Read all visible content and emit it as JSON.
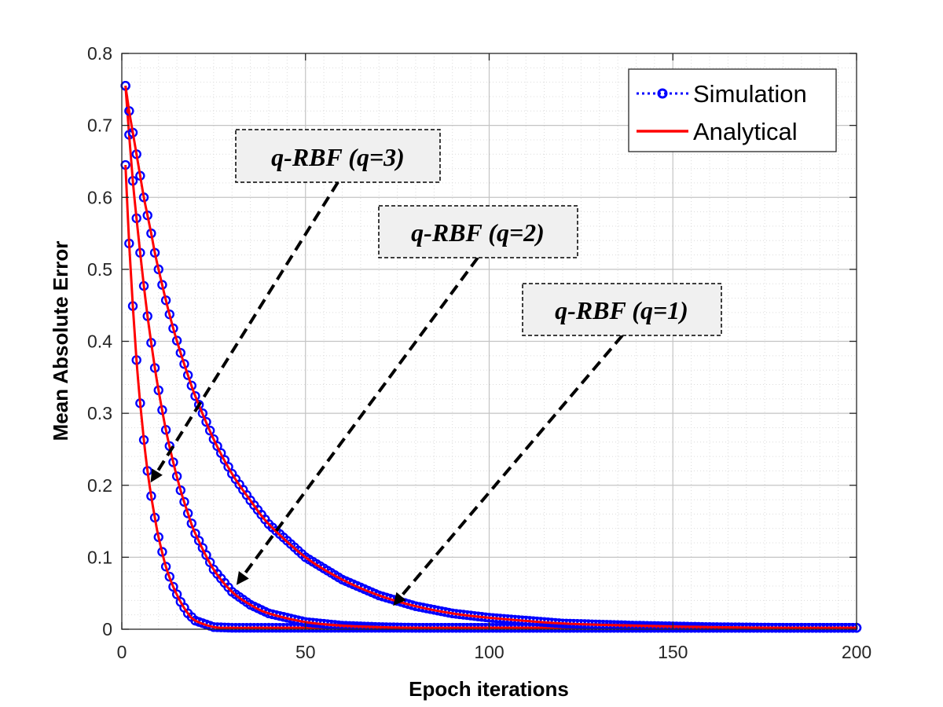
{
  "chart_data": {
    "type": "line",
    "xlabel": "Epoch iterations",
    "ylabel": "Mean Absolute Error",
    "xlim": [
      0,
      200
    ],
    "ylim": [
      0,
      0.8
    ],
    "x_ticks": [
      "0",
      "50",
      "100",
      "150",
      "200"
    ],
    "y_ticks": [
      "0",
      "0.1",
      "0.2",
      "0.3",
      "0.4",
      "0.5",
      "0.6",
      "0.7",
      "0.8"
    ],
    "grid": true,
    "minor_grid": true,
    "legend_position": "top-right",
    "legend": [
      {
        "label": "Simulation",
        "style": "dotted line with circle markers",
        "color": "#0000ff"
      },
      {
        "label": "Analytical",
        "style": "solid line",
        "color": "#ff0000"
      }
    ],
    "x": [
      1,
      2,
      3,
      4,
      5,
      6,
      7,
      8,
      9,
      10,
      12,
      14,
      16,
      18,
      20,
      25,
      30,
      35,
      40,
      50,
      60,
      70,
      80,
      90,
      100,
      120,
      140,
      160,
      180,
      200
    ],
    "series": [
      {
        "curve": "q-RBF (q=1)",
        "values": [
          0.645,
          0.536,
          0.449,
          0.374,
          0.314,
          0.263,
          0.22,
          0.185,
          0.155,
          0.128,
          0.087,
          0.059,
          0.038,
          0.022,
          0.012,
          0.003,
          0.002,
          0.002,
          0.002,
          0.002,
          0.002,
          0.002,
          0.002,
          0.002,
          0.002,
          0.002,
          0.002,
          0.002,
          0.002,
          0.002
        ]
      },
      {
        "curve": "q-RBF (q=2)",
        "values": [
          0.755,
          0.687,
          0.623,
          0.571,
          0.523,
          0.477,
          0.435,
          0.398,
          0.363,
          0.332,
          0.277,
          0.232,
          0.193,
          0.161,
          0.133,
          0.083,
          0.052,
          0.034,
          0.022,
          0.01,
          0.005,
          0.003,
          0.002,
          0.002,
          0.002,
          0.002,
          0.002,
          0.002,
          0.002,
          0.002
        ]
      },
      {
        "curve": "q-RBF (q=3)",
        "values": [
          0.755,
          0.72,
          0.69,
          0.66,
          0.63,
          0.6,
          0.575,
          0.55,
          0.523,
          0.5,
          0.457,
          0.418,
          0.384,
          0.353,
          0.324,
          0.264,
          0.216,
          0.179,
          0.146,
          0.1,
          0.069,
          0.047,
          0.032,
          0.022,
          0.016,
          0.008,
          0.005,
          0.003,
          0.002,
          0.002
        ]
      }
    ],
    "annotations": [
      {
        "text": "q-RBF (q=3)",
        "points_to": {
          "x": 7,
          "y": 0.2
        }
      },
      {
        "text": "q-RBF (q=2)",
        "points_to": {
          "x": 31,
          "y": 0.06
        }
      },
      {
        "text": "q-RBF (q=1)",
        "points_to": {
          "x": 74,
          "y": 0.035
        }
      }
    ],
    "colors": {
      "simulation": "#0000ff",
      "analytical": "#ff0000",
      "annotation_box": "#f0f0f0"
    }
  }
}
